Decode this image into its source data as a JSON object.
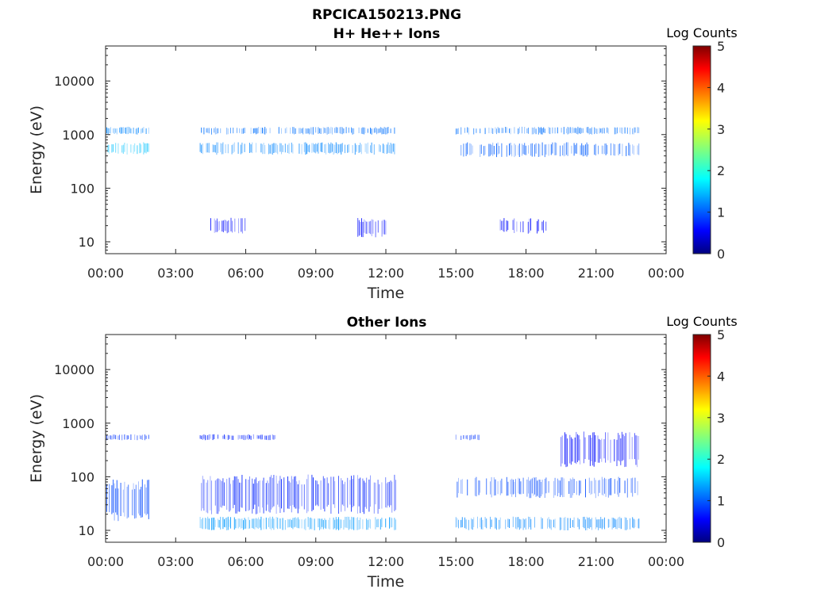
{
  "figure": {
    "title_line1": "RPCICA150213.PNG",
    "title_line2": "H+ He++ Ions"
  },
  "chart_data": [
    {
      "type": "heatmap",
      "title": "H+ He++ Ions",
      "xlabel": "Time",
      "ylabel": "Energy (eV)",
      "x_ticks": [
        "00:00",
        "03:00",
        "06:00",
        "09:00",
        "12:00",
        "15:00",
        "18:00",
        "21:00",
        "00:00"
      ],
      "x_range_hours": [
        0,
        24
      ],
      "y_scale": "log",
      "y_range": [
        6,
        45000
      ],
      "y_ticks": [
        {
          "value": 10,
          "label": "10"
        },
        {
          "value": 100,
          "label": "100"
        },
        {
          "value": 1000,
          "label": "1000"
        },
        {
          "value": 10000,
          "label": "10000"
        }
      ],
      "colorbar": {
        "label": "Log Counts",
        "ticks": [
          "0",
          "1",
          "2",
          "3",
          "4",
          "5"
        ],
        "range": [
          0,
          5
        ],
        "colormap": "jet"
      },
      "data_gaps_hours": [
        [
          1.9,
          4.05
        ],
        [
          12.45,
          15.0
        ]
      ],
      "data_end_hour": 22.85,
      "bands": [
        {
          "t_start": 0.05,
          "t_end": 1.85,
          "e_low": 1000,
          "e_high": 1400,
          "log_counts": 1.2
        },
        {
          "t_start": 0.05,
          "t_end": 1.85,
          "e_low": 420,
          "e_high": 720,
          "log_counts": 1.5
        },
        {
          "t_start": 4.05,
          "t_end": 12.45,
          "e_low": 1000,
          "e_high": 1400,
          "log_counts": 1.1
        },
        {
          "t_start": 4.05,
          "t_end": 12.45,
          "e_low": 420,
          "e_high": 720,
          "log_counts": 1.2
        },
        {
          "t_start": 15.0,
          "t_end": 22.85,
          "e_low": 1000,
          "e_high": 1400,
          "log_counts": 1.1
        },
        {
          "t_start": 15.0,
          "t_end": 22.85,
          "e_low": 380,
          "e_high": 720,
          "log_counts": 1.0
        },
        {
          "t_start": 4.5,
          "t_end": 6.0,
          "e_low": 14,
          "e_high": 28,
          "log_counts": 0.6
        },
        {
          "t_start": 10.8,
          "t_end": 12.0,
          "e_low": 12,
          "e_high": 28,
          "log_counts": 0.6
        },
        {
          "t_start": 16.9,
          "t_end": 19.0,
          "e_low": 14,
          "e_high": 28,
          "log_counts": 0.6
        }
      ]
    },
    {
      "type": "heatmap",
      "title": "Other Ions",
      "xlabel": "Time",
      "ylabel": "Energy (eV)",
      "x_ticks": [
        "00:00",
        "03:00",
        "06:00",
        "09:00",
        "12:00",
        "15:00",
        "18:00",
        "21:00",
        "00:00"
      ],
      "x_range_hours": [
        0,
        24
      ],
      "y_scale": "log",
      "y_range": [
        6,
        45000
      ],
      "y_ticks": [
        {
          "value": 10,
          "label": "10"
        },
        {
          "value": 100,
          "label": "100"
        },
        {
          "value": 1000,
          "label": "1000"
        },
        {
          "value": 10000,
          "label": "10000"
        }
      ],
      "colorbar": {
        "label": "Log Counts",
        "ticks": [
          "0",
          "1",
          "2",
          "3",
          "4",
          "5"
        ],
        "range": [
          0,
          5
        ],
        "colormap": "jet"
      },
      "data_gaps_hours": [
        [
          1.9,
          4.05
        ],
        [
          12.45,
          15.0
        ]
      ],
      "data_end_hour": 22.85,
      "bands": [
        {
          "t_start": 0.05,
          "t_end": 1.85,
          "e_low": 480,
          "e_high": 620,
          "log_counts": 0.8
        },
        {
          "t_start": 4.05,
          "t_end": 7.5,
          "e_low": 480,
          "e_high": 620,
          "log_counts": 0.7
        },
        {
          "t_start": 15.0,
          "t_end": 16.0,
          "e_low": 480,
          "e_high": 620,
          "log_counts": 0.8
        },
        {
          "t_start": 0.05,
          "t_end": 1.85,
          "e_low": 14,
          "e_high": 90,
          "log_counts": 0.9
        },
        {
          "t_start": 4.05,
          "t_end": 12.45,
          "e_low": 10,
          "e_high": 18,
          "log_counts": 1.3
        },
        {
          "t_start": 4.05,
          "t_end": 12.45,
          "e_low": 20,
          "e_high": 110,
          "log_counts": 0.7
        },
        {
          "t_start": 15.0,
          "t_end": 22.85,
          "e_low": 10,
          "e_high": 18,
          "log_counts": 1.2
        },
        {
          "t_start": 15.0,
          "t_end": 22.85,
          "e_low": 40,
          "e_high": 100,
          "log_counts": 0.9
        },
        {
          "t_start": 19.5,
          "t_end": 22.85,
          "e_low": 150,
          "e_high": 700,
          "log_counts": 0.6
        }
      ]
    }
  ]
}
